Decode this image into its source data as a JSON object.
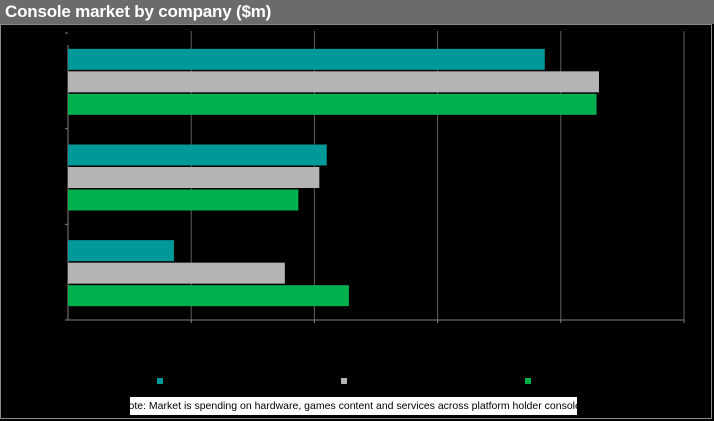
{
  "header": {
    "title": "Console market by company ($m)"
  },
  "note": "Note: Market is spending on hardware, games content and services across platform holder consoles",
  "colors": {
    "series1": "#009999",
    "series2": "#b4b4b4",
    "series3": "#00b04f",
    "grid": "#606060",
    "axis": "#7f7f7f"
  },
  "chart_data": {
    "type": "bar",
    "orientation": "horizontal",
    "title": "Console market by company ($m)",
    "categories": [
      "",
      "",
      ""
    ],
    "series": [
      {
        "values": [
          3870,
          2100,
          860
        ]
      },
      {
        "values": [
          4310,
          2040,
          1760
        ]
      },
      {
        "values": [
          4290,
          1870,
          2280
        ]
      }
    ],
    "xlim": [
      0,
      5000
    ],
    "x_gridlines": [
      1000,
      2000,
      3000,
      4000,
      5000
    ],
    "grid": true,
    "legend": {
      "position": "bottom",
      "labels_visible": false
    }
  }
}
